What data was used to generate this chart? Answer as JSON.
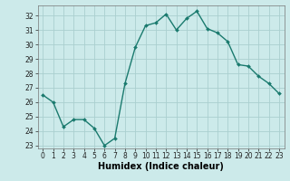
{
  "x": [
    0,
    1,
    2,
    3,
    4,
    5,
    6,
    7,
    8,
    9,
    10,
    11,
    12,
    13,
    14,
    15,
    16,
    17,
    18,
    19,
    20,
    21,
    22,
    23
  ],
  "y": [
    26.5,
    26.0,
    24.3,
    24.8,
    24.8,
    24.2,
    23.0,
    23.5,
    27.3,
    29.8,
    31.3,
    31.5,
    32.1,
    31.0,
    31.8,
    32.3,
    31.1,
    30.8,
    30.2,
    28.6,
    28.5,
    27.8,
    27.3,
    26.6
  ],
  "line_color": "#1a7a6e",
  "marker": "D",
  "marker_size": 2.0,
  "bg_color": "#cceaea",
  "grid_color": "#aacfcf",
  "xlabel": "Humidex (Indice chaleur)",
  "ylim": [
    22.8,
    32.7
  ],
  "xlim": [
    -0.5,
    23.5
  ],
  "yticks": [
    23,
    24,
    25,
    26,
    27,
    28,
    29,
    30,
    31,
    32
  ],
  "xticks": [
    0,
    1,
    2,
    3,
    4,
    5,
    6,
    7,
    8,
    9,
    10,
    11,
    12,
    13,
    14,
    15,
    16,
    17,
    18,
    19,
    20,
    21,
    22,
    23
  ],
  "tick_fontsize": 5.5,
  "xlabel_fontsize": 7.0,
  "line_width": 1.0
}
